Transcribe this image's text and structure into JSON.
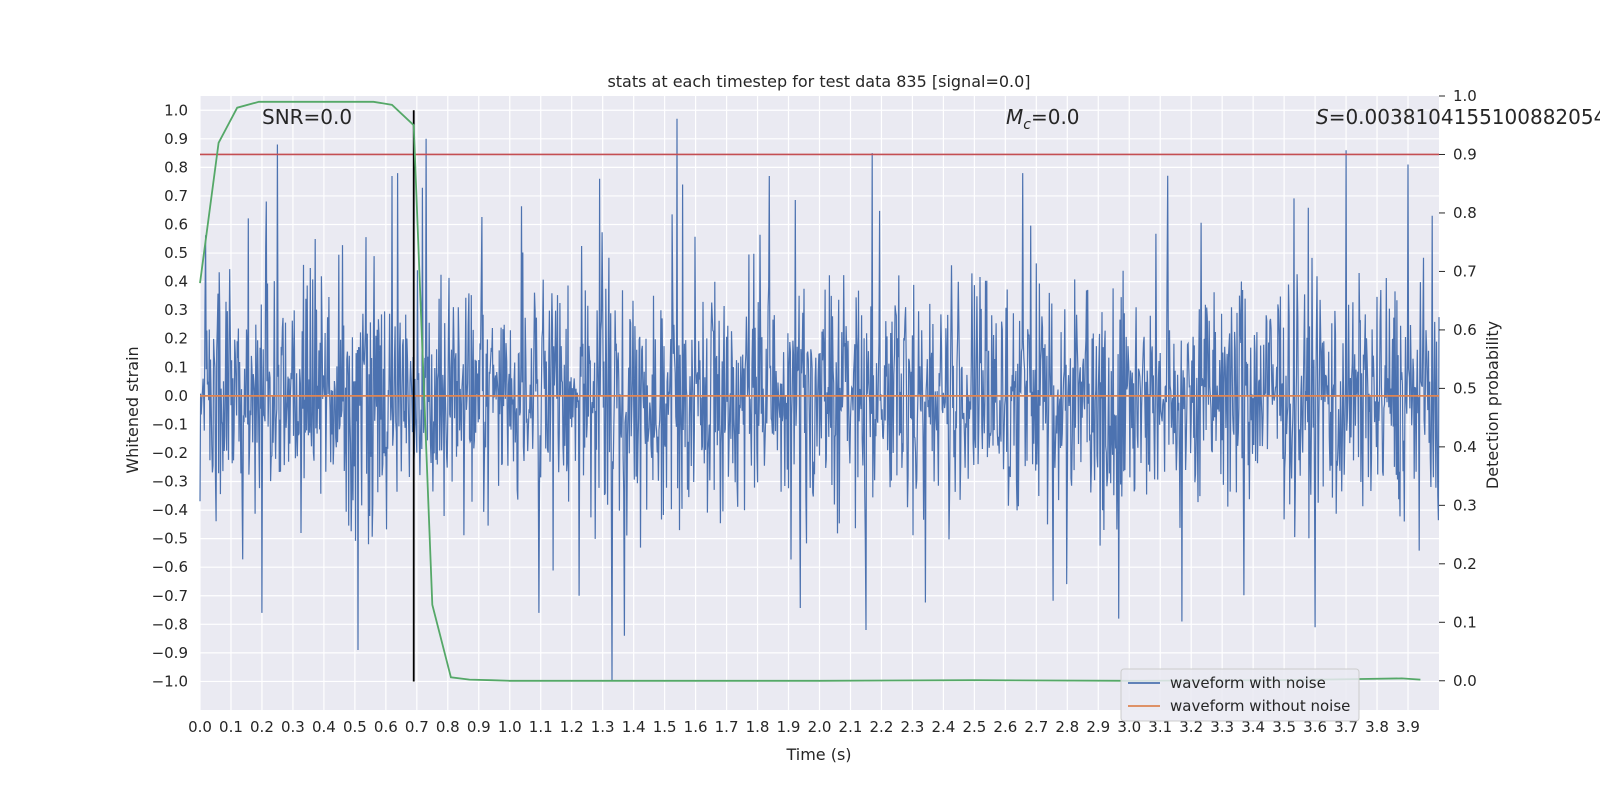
{
  "chart_data": {
    "type": "line",
    "title": "stats at each timestep for test data 835 [signal=0.0]",
    "xlabel": "Time (s)",
    "ylabel": "Whitened strain",
    "y2label": "Detection probability",
    "xlim": [
      0.0,
      4.0
    ],
    "ylim": [
      -1.1,
      1.05
    ],
    "y2lim": [
      -0.05,
      1.0
    ],
    "x_ticks": [
      "0.0",
      "0.1",
      "0.2",
      "0.3",
      "0.4",
      "0.5",
      "0.6",
      "0.7",
      "0.8",
      "0.9",
      "1.0",
      "1.1",
      "1.2",
      "1.3",
      "1.4",
      "1.5",
      "1.6",
      "1.7",
      "1.8",
      "1.9",
      "2.0",
      "2.1",
      "2.2",
      "2.3",
      "2.4",
      "2.5",
      "2.6",
      "2.7",
      "2.8",
      "2.9",
      "3.0",
      "3.1",
      "3.2",
      "3.3",
      "3.4",
      "3.5",
      "3.6",
      "3.7",
      "3.8",
      "3.9"
    ],
    "y_ticks": [
      "1.0",
      "0.9",
      "0.8",
      "0.7",
      "0.6",
      "0.5",
      "0.4",
      "0.3",
      "0.2",
      "0.1",
      "0.0",
      "−0.1",
      "−0.2",
      "−0.3",
      "−0.4",
      "−0.5",
      "−0.6",
      "−0.7",
      "−0.8",
      "−0.9",
      "−1.0"
    ],
    "y2_ticks": [
      "1.0",
      "0.9",
      "0.8",
      "0.7",
      "0.6",
      "0.5",
      "0.4",
      "0.3",
      "0.2",
      "0.1",
      "0.0"
    ],
    "grid": true,
    "legend_position": "lower-right",
    "annotations": {
      "snr": "SNR=0.0",
      "mc_symbol": "M",
      "mc_subscript": "c",
      "mc_value": "=0.0",
      "s_symbol": "S",
      "s_value": "=0.0038104155100882054"
    },
    "threshold_line": {
      "axis": "y2",
      "value": 0.9,
      "color": "#c44e52"
    },
    "marker_line": {
      "x": 0.69,
      "color": "#000000"
    },
    "series": [
      {
        "name": "waveform with noise",
        "axis": "y",
        "color": "#4c72b0",
        "spikes": [
          {
            "x": 0.25,
            "y": 0.88
          },
          {
            "x": 0.73,
            "y": 0.9
          },
          {
            "x": 1.54,
            "y": 0.97
          },
          {
            "x": 2.17,
            "y": 0.85
          },
          {
            "x": 3.7,
            "y": 0.86
          },
          {
            "x": 3.9,
            "y": 0.81
          },
          {
            "x": 0.62,
            "y": 0.77
          },
          {
            "x": 1.29,
            "y": 0.76
          },
          {
            "x": 0.51,
            "y": -0.89
          },
          {
            "x": 1.33,
            "y": -1.0
          },
          {
            "x": 1.37,
            "y": -0.84
          },
          {
            "x": 2.15,
            "y": -0.82
          },
          {
            "x": 3.6,
            "y": -0.81
          },
          {
            "x": 3.17,
            "y": -0.79
          },
          {
            "x": 0.2,
            "y": -0.76
          }
        ]
      },
      {
        "name": "waveform without noise",
        "axis": "y",
        "color": "#dd8452",
        "x": [
          0.0,
          4.0
        ],
        "y": [
          0.0,
          0.0
        ]
      },
      {
        "name": "detection probability",
        "axis": "y2",
        "color": "#55a868",
        "x": [
          0.0,
          0.06,
          0.12,
          0.19,
          0.25,
          0.31,
          0.37,
          0.44,
          0.5,
          0.56,
          0.62,
          0.69,
          0.75,
          0.81,
          0.87,
          0.94,
          1.0,
          1.5,
          2.0,
          2.5,
          3.0,
          3.5,
          3.75,
          3.88,
          3.94
        ],
        "y": [
          0.68,
          0.92,
          0.98,
          0.99,
          0.99,
          0.99,
          0.99,
          0.99,
          0.99,
          0.99,
          0.985,
          0.95,
          0.13,
          0.006,
          0.002,
          0.001,
          0.0,
          0.0,
          0.0,
          0.001,
          0.0,
          0.001,
          0.003,
          0.004,
          0.002
        ]
      }
    ]
  }
}
